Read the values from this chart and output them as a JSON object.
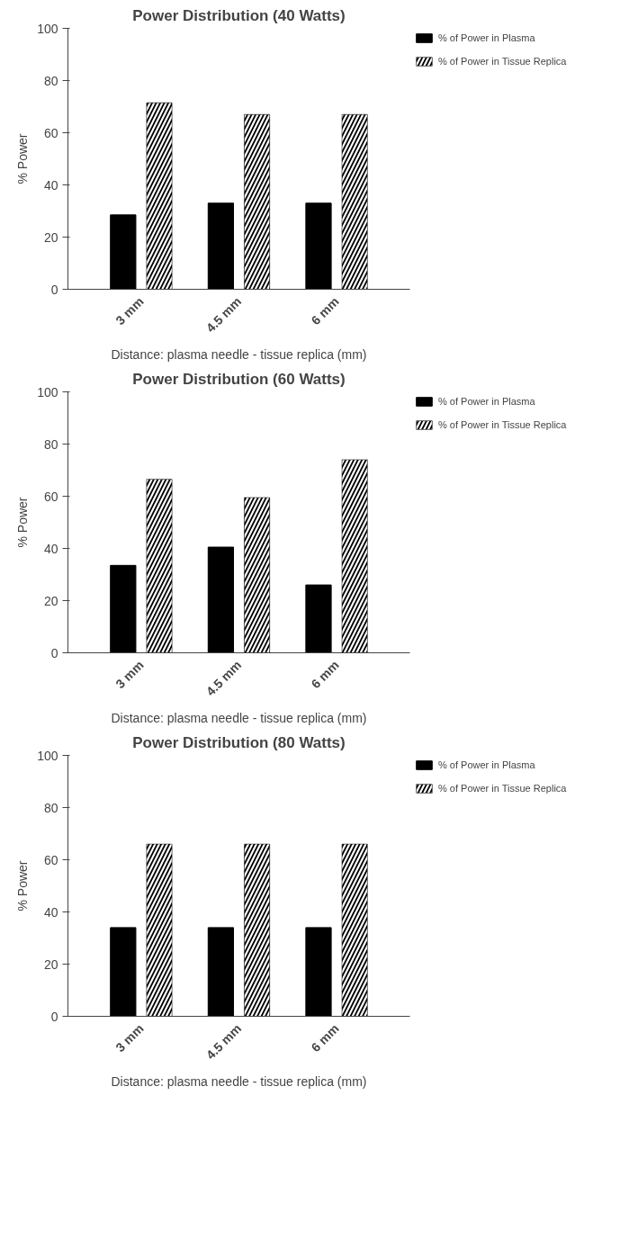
{
  "chart_data": [
    {
      "type": "bar",
      "title": "Power Distribution (40 Watts)",
      "xlabel": "Distance: plasma needle - tissue replica (mm)",
      "ylabel": "% Power",
      "categories": [
        "3 mm",
        "4.5 mm",
        "6 mm"
      ],
      "series": [
        {
          "name": "% of Power in Plasma",
          "color": "#000000",
          "values": [
            28.5,
            33,
            33
          ]
        },
        {
          "name": "% of Power in Tissue Replica",
          "color": "#000000",
          "values": [
            71.5,
            67,
            67
          ]
        }
      ],
      "ylim": [
        0,
        100
      ],
      "yticks": [
        0,
        20,
        40,
        60,
        80,
        100
      ],
      "legend": "right"
    },
    {
      "type": "bar",
      "title": "Power Distribution (60 Watts)",
      "xlabel": "Distance: plasma needle - tissue replica (mm)",
      "ylabel": "% Power",
      "categories": [
        "3 mm",
        "4.5 mm",
        "6 mm"
      ],
      "series": [
        {
          "name": "% of Power in Plasma",
          "color": "#000000",
          "values": [
            33.5,
            40.5,
            26
          ]
        },
        {
          "name": "% of Power in Tissue Replica",
          "color": "#000000",
          "values": [
            66.5,
            59.5,
            74
          ]
        }
      ],
      "ylim": [
        0,
        100
      ],
      "yticks": [
        0,
        20,
        40,
        60,
        80,
        100
      ],
      "legend": "right"
    },
    {
      "type": "bar",
      "title": "Power Distribution (80 Watts)",
      "xlabel": "Distance: plasma needle - tissue replica (mm)",
      "ylabel": "% Power",
      "categories": [
        "3 mm",
        "4.5 mm",
        "6 mm"
      ],
      "series": [
        {
          "name": "% of Power in Plasma",
          "color": "#000000",
          "values": [
            34,
            34,
            34
          ]
        },
        {
          "name": "% of Power in Tissue Replica",
          "color": "#000000",
          "values": [
            66,
            66,
            66
          ]
        }
      ],
      "ylim": [
        0,
        100
      ],
      "yticks": [
        0,
        20,
        40,
        60,
        80,
        100
      ],
      "legend": "right"
    }
  ]
}
